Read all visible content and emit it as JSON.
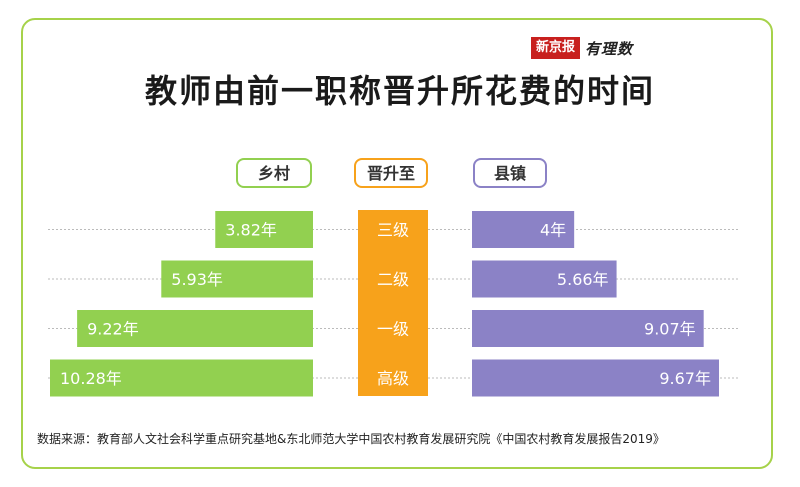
{
  "brand": {
    "name": "新京报",
    "sub": "有理数"
  },
  "title": "教师由前一职称晋升所花费的时间",
  "headers": {
    "left": "乡村",
    "middle": "晋升至",
    "right": "县镇"
  },
  "source": "数据来源：教育部人文社会科学重点研究基地&东北师范大学中国农村教育发展研究院《中国农村教育发展报告2019》",
  "colors": {
    "rural": "#92d050",
    "middle": "#f7a21b",
    "town": "#8b82c6",
    "frame": "#a6d24a"
  },
  "chart_data": {
    "type": "bar",
    "orientation": "horizontal-butterfly",
    "categories": [
      "三级",
      "二级",
      "一级",
      "高级"
    ],
    "unit": "年",
    "series": [
      {
        "name": "乡村",
        "values": [
          3.82,
          5.93,
          9.22,
          10.28
        ],
        "labels": [
          "3.82年",
          "5.93年",
          "9.22年",
          "10.28年"
        ]
      },
      {
        "name": "县镇",
        "values": [
          4,
          5.66,
          9.07,
          9.67
        ],
        "labels": [
          "4年",
          "5.66年",
          "9.07年",
          "9.67年"
        ]
      }
    ],
    "grid": true
  }
}
